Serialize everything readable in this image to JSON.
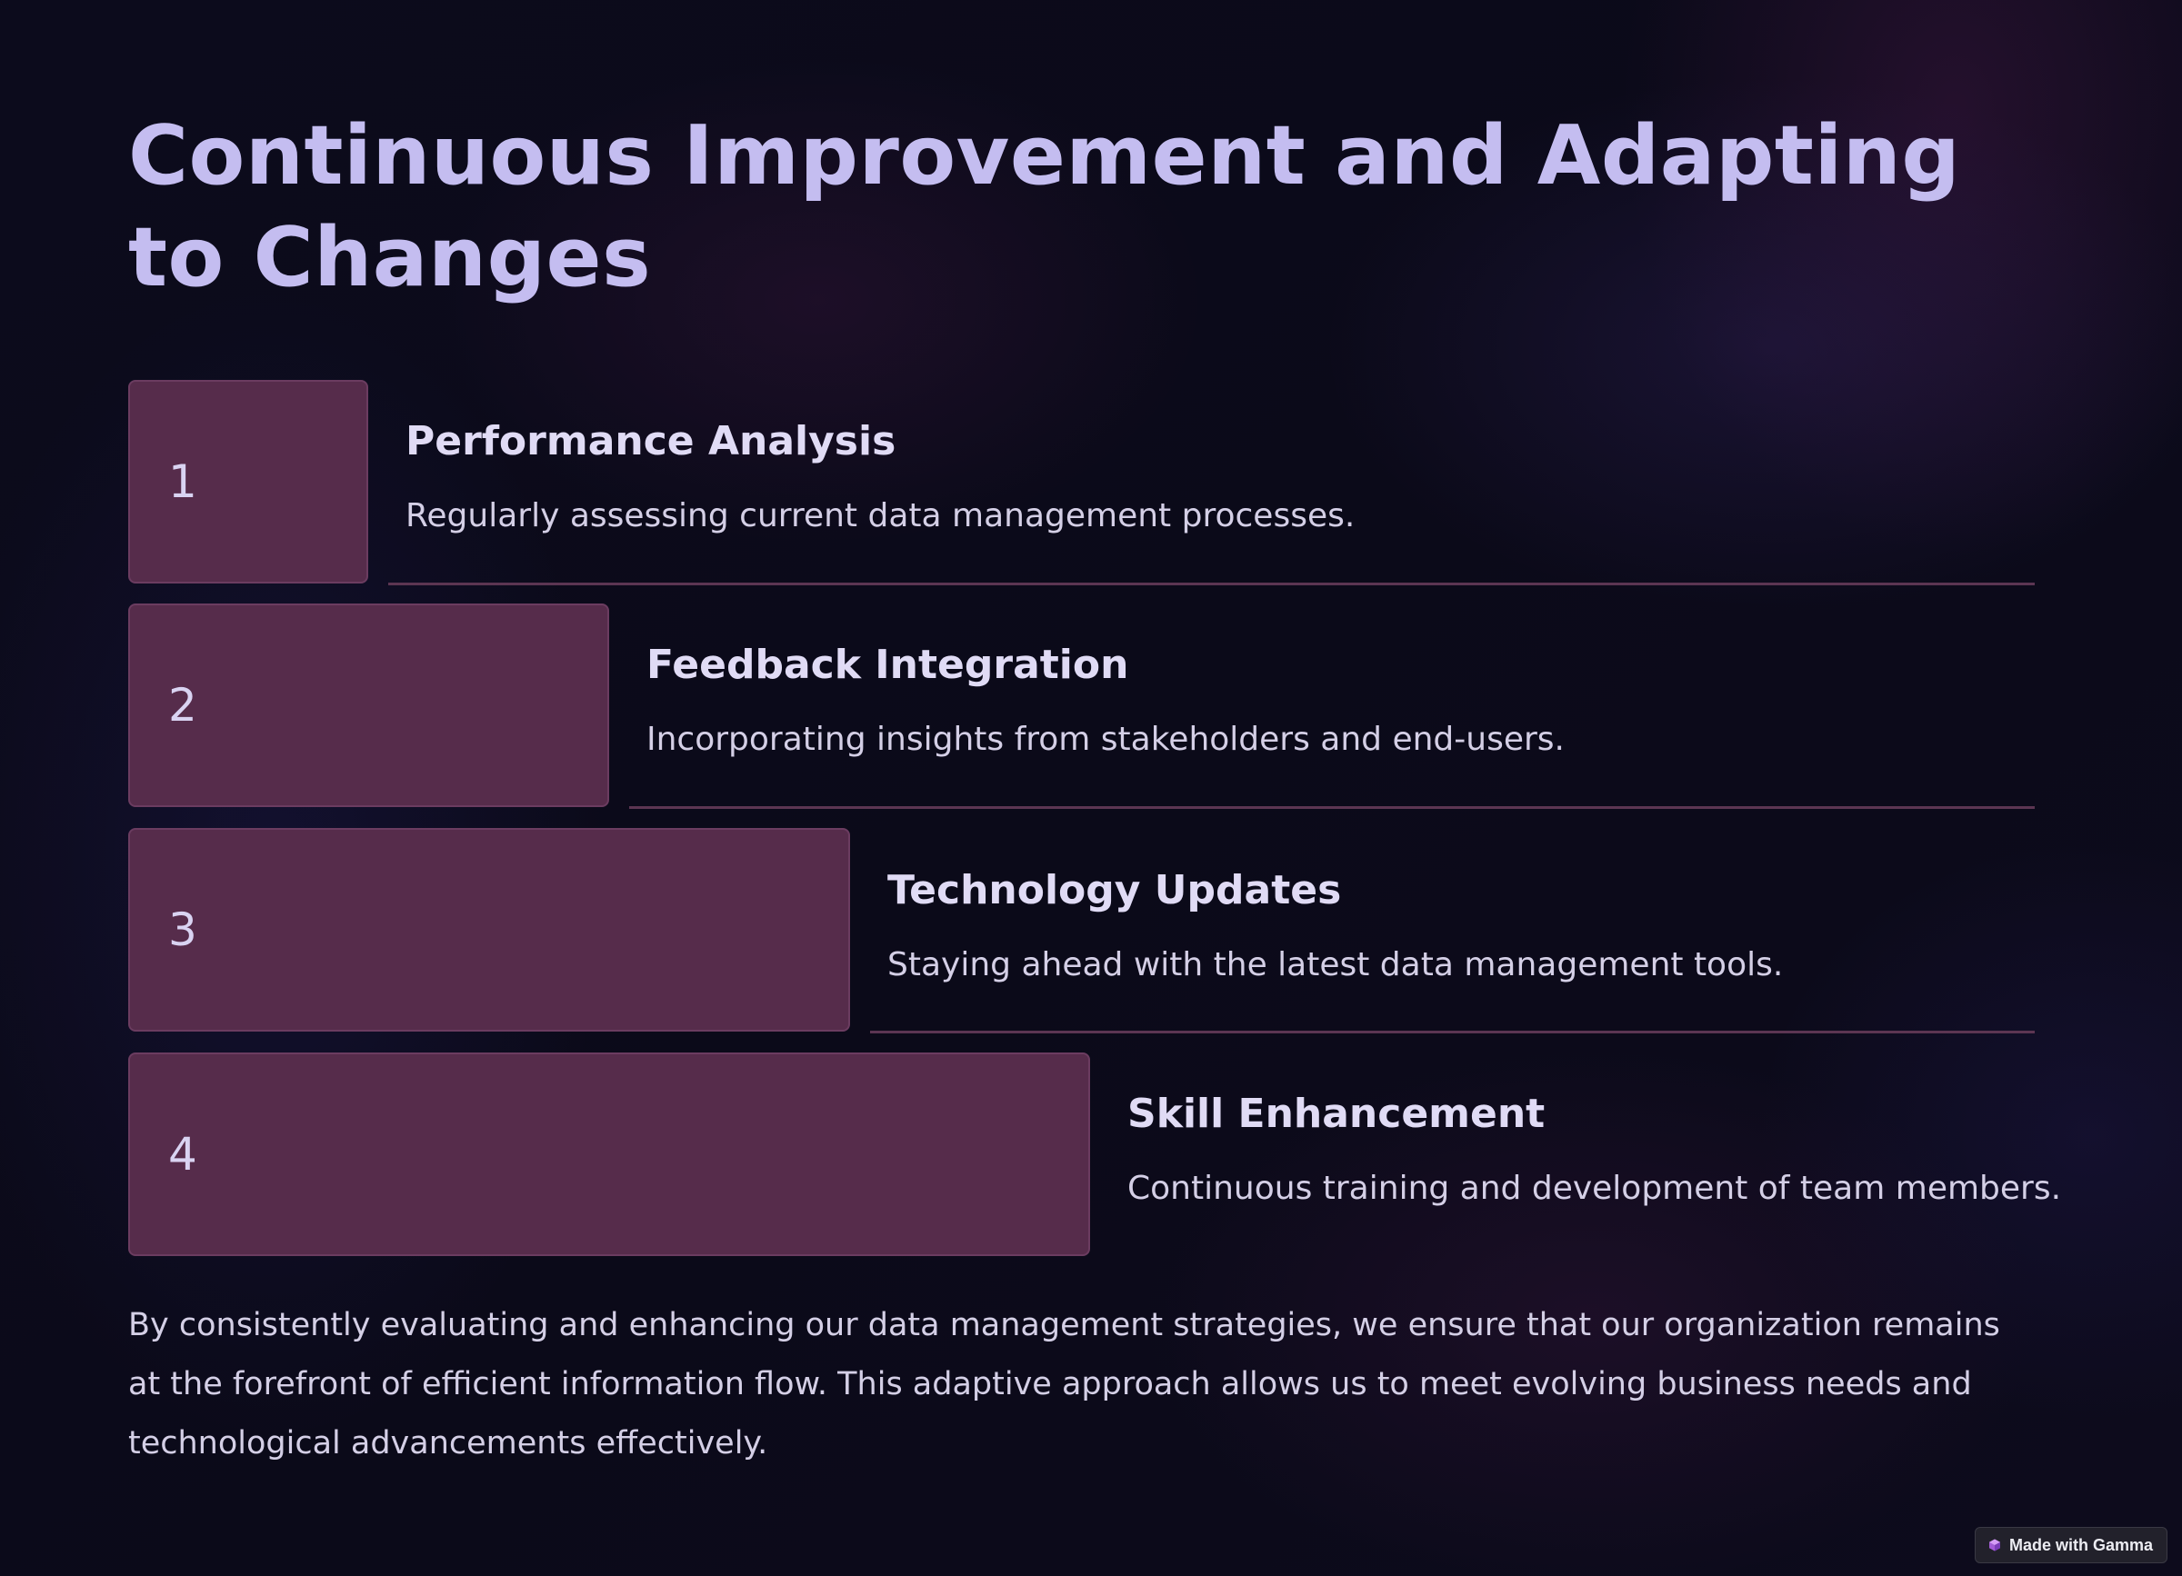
{
  "title": "Continuous Improvement and Adapting to Changes",
  "steps": [
    {
      "number": "1",
      "title": "Performance Analysis",
      "description": "Regularly assessing current data management processes."
    },
    {
      "number": "2",
      "title": "Feedback Integration",
      "description": "Incorporating insights from stakeholders and end-users."
    },
    {
      "number": "3",
      "title": "Technology Updates",
      "description": "Staying ahead with the latest data management tools."
    },
    {
      "number": "4",
      "title": "Skill Enhancement",
      "description": "Continuous training and development of team members."
    }
  ],
  "summary": "By consistently evaluating and enhancing our data management strategies, we ensure that our organization remains at the forefront of efficient information flow. This adaptive approach allows us to meet evolving business needs and technological advancements effectively.",
  "badge": {
    "label": "Made with Gamma",
    "icon": "gamma-logo-icon"
  },
  "colors": {
    "background": "#0b0b1b",
    "title": "#c4bdf0",
    "step_box": "#562c4b",
    "divider": "#5c3552",
    "text": "#d4cfe6"
  }
}
